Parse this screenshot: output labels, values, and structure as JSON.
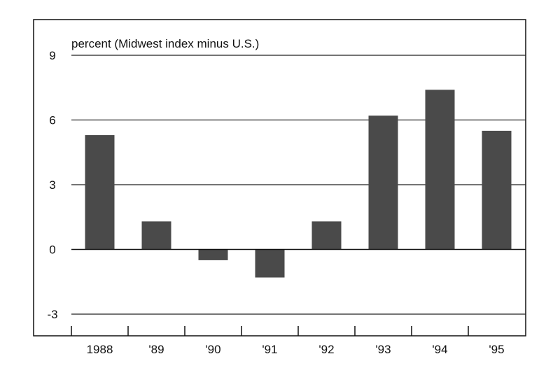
{
  "chart_data": {
    "type": "bar",
    "ylabel": "percent (Midwest index minus U.S.)",
    "categories": [
      "1988",
      "'89",
      "'90",
      "'91",
      "'92",
      "'93",
      "'94",
      "'95"
    ],
    "values": [
      5.3,
      1.3,
      -0.5,
      -1.3,
      1.3,
      6.2,
      7.4,
      5.5
    ],
    "ylim": [
      -4,
      10
    ],
    "yticks": [
      -3,
      0,
      3,
      6,
      9
    ],
    "grid": true,
    "bar_color": "#4a4a4a",
    "grid_color": "#222222"
  }
}
